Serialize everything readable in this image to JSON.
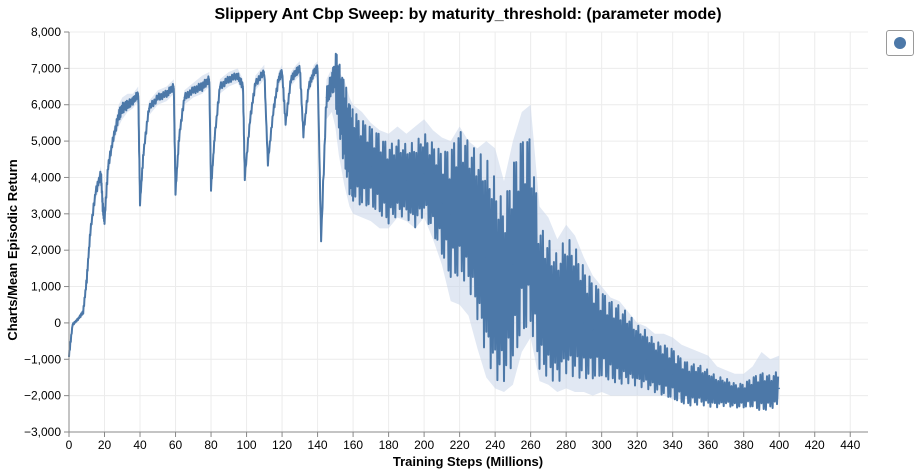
{
  "chart_data": {
    "type": "line",
    "title": "Slippery Ant Cbp Sweep: by maturity_threshold: (parameter mode)",
    "xlabel": "Training Steps (Millions)",
    "ylabel": "Charts/Mean Episodic Return",
    "xlim": [
      0,
      450
    ],
    "ylim": [
      -3000,
      8000
    ],
    "x_ticks": [
      0,
      20,
      40,
      60,
      80,
      100,
      120,
      140,
      160,
      180,
      200,
      220,
      240,
      260,
      280,
      300,
      320,
      340,
      360,
      380,
      400,
      420,
      440
    ],
    "y_ticks": [
      -3000,
      -2000,
      -1000,
      0,
      1000,
      2000,
      3000,
      4000,
      5000,
      6000,
      7000,
      8000
    ],
    "grid": true,
    "legend_position": "top-right",
    "series": [
      {
        "color": "#4c78a8",
        "band_color": "#c9d6ea",
        "x": [
          0,
          2,
          5,
          8,
          10,
          12,
          15,
          18,
          19,
          20,
          22,
          25,
          28,
          30,
          33,
          36,
          39,
          40,
          42,
          45,
          50,
          55,
          59,
          60,
          62,
          65,
          70,
          75,
          79,
          80,
          82,
          85,
          90,
          95,
          98,
          99,
          102,
          105,
          110,
          112,
          115,
          118,
          120,
          122,
          125,
          128,
          130,
          132,
          135,
          138,
          140,
          142,
          145,
          148,
          150,
          152,
          155,
          158,
          160,
          165,
          170,
          175,
          180,
          185,
          190,
          195,
          200,
          205,
          210,
          215,
          220,
          225,
          230,
          235,
          240,
          245,
          250,
          255,
          260,
          265,
          270,
          275,
          280,
          285,
          290,
          295,
          300,
          305,
          310,
          315,
          320,
          325,
          330,
          335,
          340,
          345,
          350,
          355,
          360,
          365,
          370,
          375,
          380,
          385,
          390,
          395,
          400
        ],
        "mean": [
          -900,
          -50,
          100,
          300,
          1200,
          2500,
          3600,
          4100,
          3200,
          2800,
          4300,
          5100,
          5700,
          5900,
          6000,
          6100,
          6300,
          3300,
          4700,
          5900,
          6200,
          6300,
          6500,
          3600,
          5100,
          6200,
          6400,
          6500,
          6700,
          3700,
          5100,
          6500,
          6700,
          6800,
          6500,
          4000,
          5600,
          6600,
          6900,
          4400,
          5800,
          6700,
          6900,
          5500,
          6700,
          6900,
          7000,
          5200,
          6500,
          6900,
          7000,
          2300,
          6200,
          6600,
          6800,
          6200,
          5500,
          4800,
          4600,
          4400,
          4300,
          4100,
          3800,
          4000,
          3900,
          3800,
          4100,
          3700,
          3300,
          3000,
          3300,
          3000,
          2400,
          1800,
          1200,
          800,
          1600,
          2400,
          2500,
          700,
          400,
          100,
          500,
          300,
          0,
          -200,
          -300,
          -500,
          -600,
          -700,
          -900,
          -1000,
          -1200,
          -1300,
          -1400,
          -1600,
          -1700,
          -1700,
          -1800,
          -1900,
          -1900,
          -2000,
          -2000,
          -1900,
          -1900,
          -1900,
          -1800
        ],
        "min": [
          -1000,
          -100,
          50,
          200,
          1000,
          2300,
          3400,
          3800,
          2900,
          2600,
          4000,
          4900,
          5400,
          5600,
          5800,
          5900,
          6100,
          3200,
          4500,
          5700,
          6000,
          6100,
          6300,
          3500,
          4900,
          6000,
          6200,
          6300,
          6500,
          3600,
          4900,
          6300,
          6500,
          6600,
          6300,
          3900,
          5400,
          6400,
          6700,
          4300,
          5600,
          6500,
          6700,
          5300,
          6500,
          6700,
          6800,
          5000,
          6300,
          6700,
          6800,
          2200,
          5600,
          5800,
          5400,
          4600,
          3800,
          3200,
          3000,
          2900,
          2800,
          2600,
          2600,
          2900,
          2800,
          2600,
          2900,
          2300,
          1600,
          600,
          500,
          200,
          -700,
          -1500,
          -1800,
          -1900,
          -1700,
          -800,
          -400,
          -1600,
          -1700,
          -1900,
          -1800,
          -1900,
          -1900,
          -2000,
          -1900,
          -2000,
          -2000,
          -2000,
          -2000,
          -2000,
          -2000,
          -2000,
          -2100,
          -2100,
          -2100,
          -2100,
          -2100,
          -2200,
          -2200,
          -2200,
          -2200,
          -2200,
          -2100,
          -2100,
          -2100
        ],
        "max": [
          -700,
          0,
          150,
          400,
          1400,
          2700,
          3800,
          4300,
          3500,
          3000,
          4500,
          5300,
          6000,
          6200,
          6300,
          6300,
          6500,
          3500,
          4900,
          6100,
          6400,
          6500,
          6700,
          3800,
          5300,
          6400,
          6600,
          6800,
          6900,
          3900,
          5300,
          6700,
          6900,
          7000,
          6700,
          4200,
          5800,
          6800,
          7100,
          4600,
          6000,
          6900,
          7100,
          5700,
          6900,
          7100,
          7200,
          5400,
          6700,
          7100,
          7200,
          2500,
          6700,
          7000,
          7100,
          6900,
          6700,
          6200,
          6000,
          5800,
          5500,
          5300,
          5200,
          5400,
          5200,
          5400,
          5600,
          5300,
          5100,
          5000,
          5400,
          5000,
          4800,
          5000,
          4800,
          3900,
          5000,
          5800,
          6000,
          3200,
          2900,
          2300,
          2700,
          2400,
          1800,
          1300,
          1000,
          700,
          600,
          300,
          0,
          -100,
          -300,
          -300,
          -400,
          -600,
          -700,
          -800,
          -900,
          -1200,
          -1300,
          -1400,
          -1400,
          -1200,
          -800,
          -1000,
          -900
        ]
      }
    ]
  }
}
